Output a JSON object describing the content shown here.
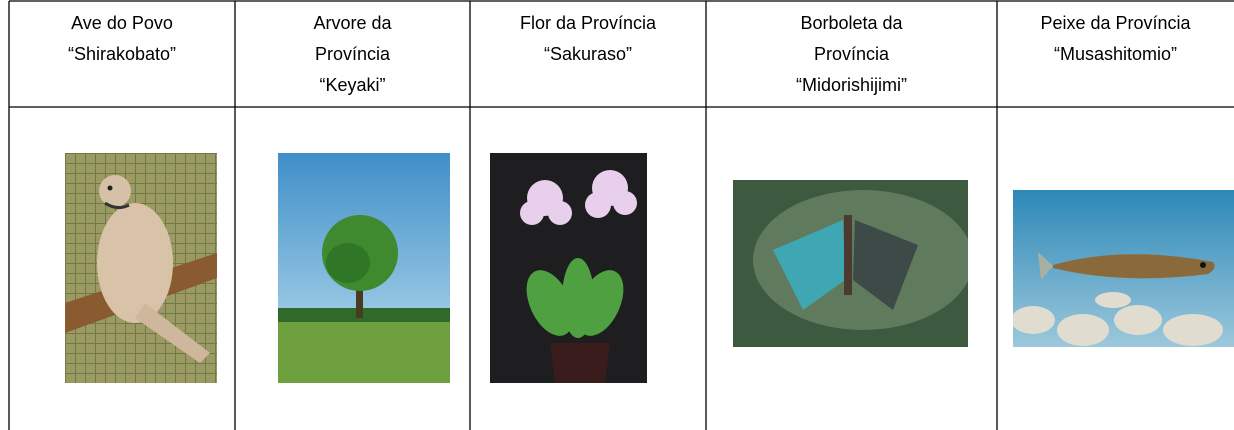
{
  "table": {
    "headers": [
      [
        "Ave do Povo",
        "“Shirakobato”"
      ],
      [
        "Arvore da",
        "Província",
        "“Keyaki”"
      ],
      [
        "Flor da Província",
        "“Sakuraso”"
      ],
      [
        "Borboleta da",
        "Província",
        "“Midorishijimi”"
      ],
      [
        "Peixe da Província",
        "“Musashitomio”"
      ]
    ]
  }
}
